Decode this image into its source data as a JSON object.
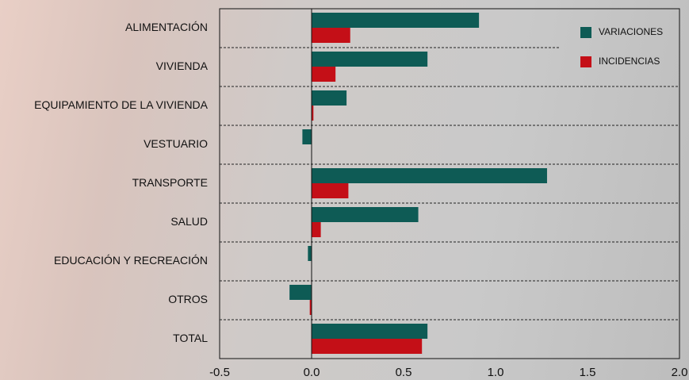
{
  "chart_data": {
    "type": "barh",
    "categories": [
      "ALIMENTACIÓN",
      "VIVIENDA",
      "EQUIPAMIENTO DE LA VIVIENDA",
      "VESTUARIO",
      "TRANSPORTE",
      "SALUD",
      "EDUCACIÓN Y RECREACIÓN",
      "OTROS",
      "TOTAL"
    ],
    "series": [
      {
        "name": "VARIACIONES",
        "color": "#0e5b55",
        "values": [
          0.91,
          0.63,
          0.19,
          -0.05,
          1.28,
          0.58,
          -0.02,
          -0.12,
          0.63
        ]
      },
      {
        "name": "INCIDENCIAS",
        "color": "#c40f17",
        "values": [
          0.21,
          0.13,
          0.01,
          0.0,
          0.2,
          0.05,
          0.0,
          -0.01,
          0.6
        ]
      }
    ],
    "xlim": [
      -0.5,
      2.0
    ],
    "xticks": [
      {
        "value": -0.5,
        "label": "-0.5"
      },
      {
        "value": 0,
        "label": "0.0"
      },
      0.5,
      {
        "value": 1,
        "label": "1.0"
      },
      1.5,
      {
        "value": 2,
        "label": "2.0"
      }
    ],
    "legend": "top-right"
  }
}
